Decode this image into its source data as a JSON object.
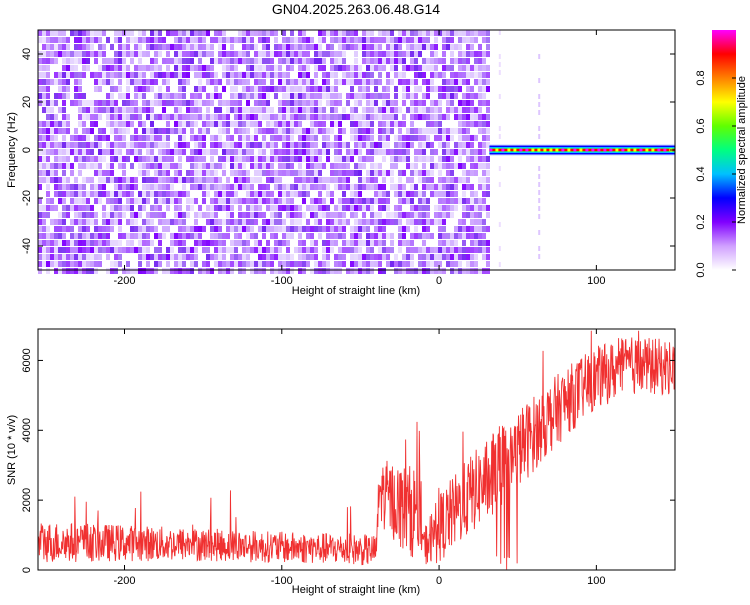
{
  "title": "GN04.2025.263.06.48.G14",
  "chart_data": [
    {
      "type": "heatmap",
      "name": "spectrogram",
      "xlabel": "Height of straight line (km)",
      "ylabel": "Frequency (Hz)",
      "xlim": [
        -255,
        150
      ],
      "ylim": [
        -50,
        50
      ],
      "xticks": [
        -200,
        -100,
        0,
        100
      ],
      "yticks": [
        -40,
        -20,
        0,
        20,
        40
      ],
      "noise_region_x": [
        -255,
        32
      ],
      "signal_band_x": [
        32,
        150
      ],
      "signal_freq_hz": 0,
      "colorbar": {
        "label": "Normalized spectral amplitude",
        "range": [
          0,
          1
        ],
        "ticks": [
          0.0,
          0.2,
          0.4,
          0.6,
          0.8
        ],
        "colors": [
          "#ffffff",
          "#d0a0ff",
          "#8000ff",
          "#0000ff",
          "#00c0ff",
          "#00ff80",
          "#60ff00",
          "#ffff00",
          "#ff8000",
          "#ff0000",
          "#ff00ff"
        ]
      }
    },
    {
      "type": "line",
      "name": "snr",
      "xlabel": "Height of straight line (km)",
      "ylabel": "SNR (10 * v/v)",
      "xlim": [
        -255,
        150
      ],
      "ylim": [
        0,
        6900
      ],
      "xticks": [
        -200,
        -100,
        0,
        100
      ],
      "yticks": [
        0,
        2000,
        4000,
        6000
      ],
      "color": "#f03030",
      "trend": [
        {
          "x": -255,
          "lo": 200,
          "hi": 1400
        },
        {
          "x": -200,
          "lo": 250,
          "hi": 1300
        },
        {
          "x": -150,
          "lo": 250,
          "hi": 1200
        },
        {
          "x": -100,
          "lo": 200,
          "hi": 1100
        },
        {
          "x": -60,
          "lo": 150,
          "hi": 1050
        },
        {
          "x": -40,
          "lo": 100,
          "hi": 1000
        },
        {
          "x": -38,
          "lo": 1300,
          "hi": 3200
        },
        {
          "x": -20,
          "lo": 400,
          "hi": 3000
        },
        {
          "x": -12,
          "lo": 300,
          "hi": 3100
        },
        {
          "x": -10,
          "lo": 100,
          "hi": 1200
        },
        {
          "x": 0,
          "lo": 200,
          "hi": 2200
        },
        {
          "x": 20,
          "lo": 1000,
          "hi": 3300
        },
        {
          "x": 40,
          "lo": 1800,
          "hi": 4200
        },
        {
          "x": 60,
          "lo": 2800,
          "hi": 5000
        },
        {
          "x": 80,
          "lo": 3800,
          "hi": 5800
        },
        {
          "x": 100,
          "lo": 4600,
          "hi": 6400
        },
        {
          "x": 120,
          "lo": 5000,
          "hi": 6700
        },
        {
          "x": 150,
          "lo": 5000,
          "hi": 6600
        }
      ]
    }
  ]
}
